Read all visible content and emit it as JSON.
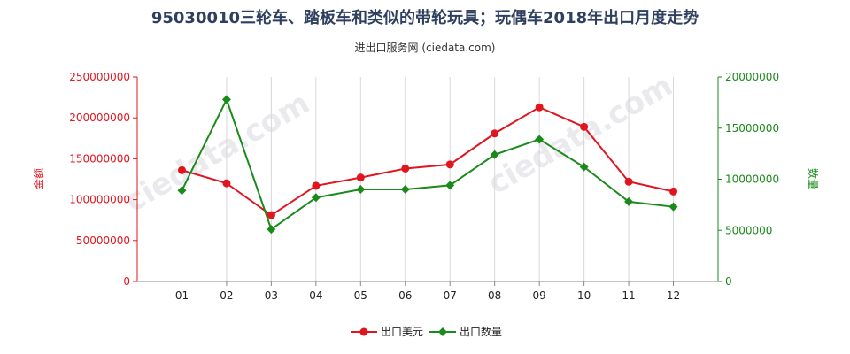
{
  "title": "95030010三轮车、踏板车和类似的带轮玩具；玩偶车2018年出口月度走势",
  "subtitle": "进出口服务网 (ciedata.com)",
  "chart_data": {
    "type": "line",
    "categories": [
      "01",
      "02",
      "03",
      "04",
      "05",
      "06",
      "07",
      "08",
      "09",
      "10",
      "11",
      "12"
    ],
    "ylabel_left": "金额",
    "ylabel_right": "数量",
    "ylim_left": [
      0,
      250000000
    ],
    "ylim_right": [
      0,
      20000000
    ],
    "yticks_left": [
      "0",
      "50000000",
      "100000000",
      "150000000",
      "200000000",
      "250000000"
    ],
    "yticks_right": [
      "0",
      "5000000",
      "10000000",
      "15000000",
      "20000000"
    ],
    "grid": "vertical",
    "legend_position": "bottom",
    "series": [
      {
        "name": "出口美元",
        "axis": "left",
        "color": "#e0151e",
        "marker": "circle",
        "values": [
          136000000,
          120000000,
          81000000,
          117000000,
          127000000,
          138000000,
          143000000,
          181000000,
          213000000,
          189000000,
          122000000,
          110000000
        ]
      },
      {
        "name": "出口数量",
        "axis": "right",
        "color": "#1a8a1a",
        "marker": "diamond",
        "values": [
          8900000,
          17800000,
          5100000,
          8200000,
          9000000,
          9000000,
          9400000,
          12400000,
          13900000,
          11200000,
          7800000,
          7300000
        ]
      }
    ]
  }
}
